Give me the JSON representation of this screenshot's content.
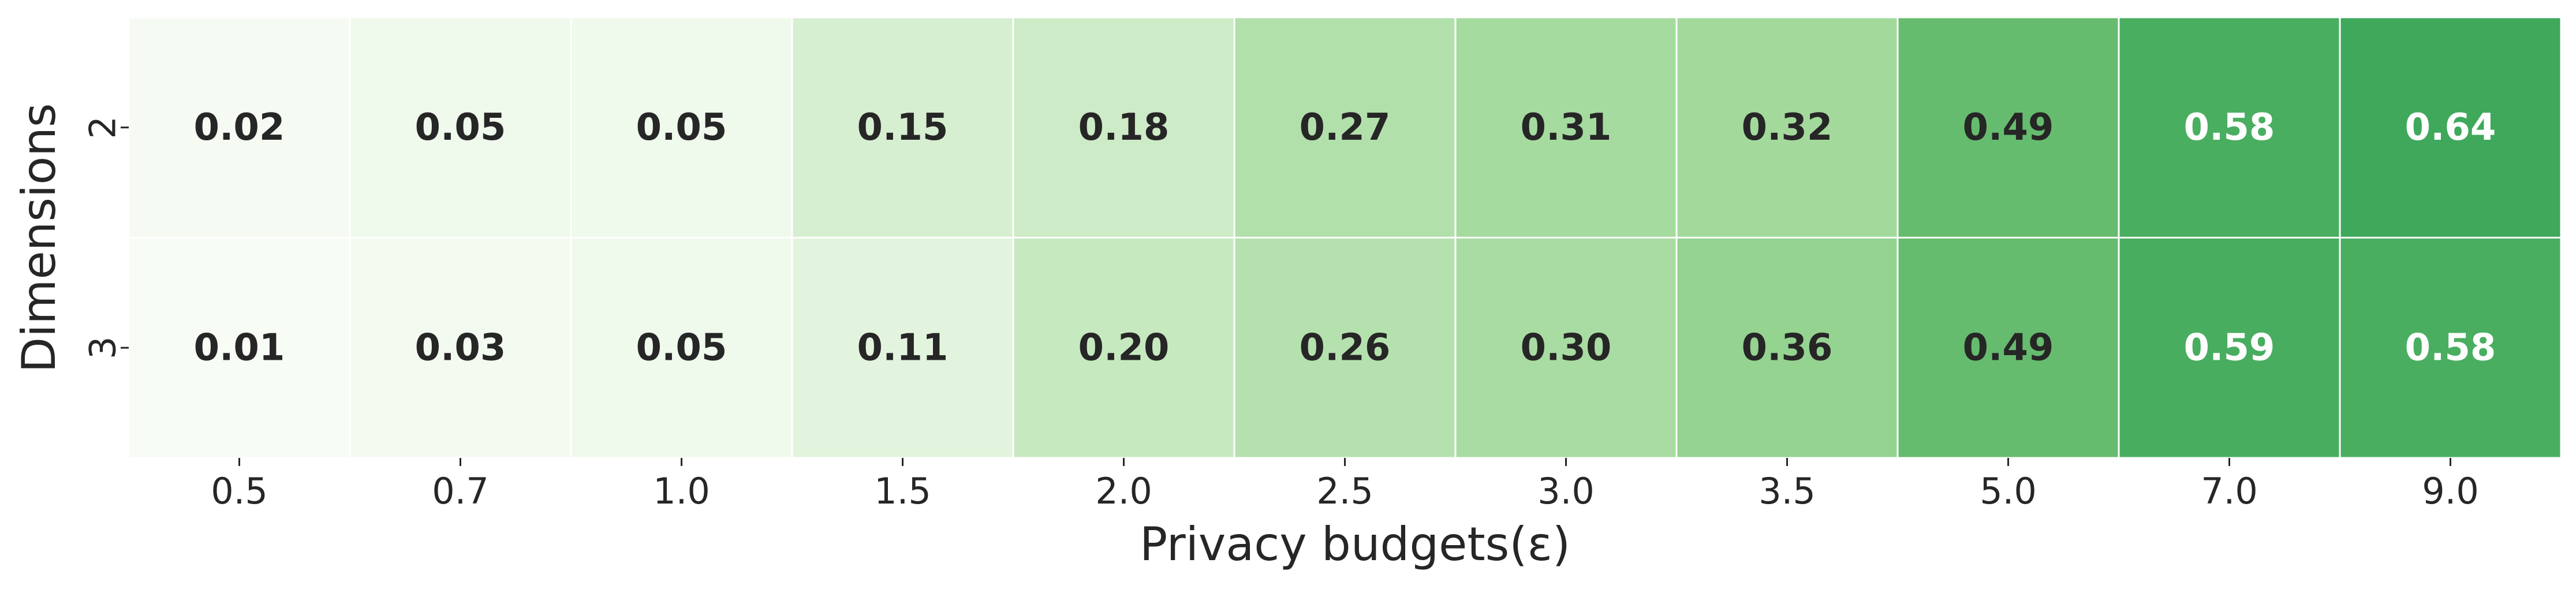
{
  "chart_data": {
    "type": "heatmap",
    "x": [
      "0.5",
      "0.7",
      "1.0",
      "1.5",
      "2.0",
      "2.5",
      "3.0",
      "3.5",
      "5.0",
      "7.0",
      "9.0"
    ],
    "y": [
      "2",
      "3"
    ],
    "values": [
      [
        0.02,
        0.05,
        0.05,
        0.15,
        0.18,
        0.27,
        0.31,
        0.32,
        0.49,
        0.58,
        0.64
      ],
      [
        0.01,
        0.03,
        0.05,
        0.11,
        0.2,
        0.26,
        0.3,
        0.36,
        0.49,
        0.59,
        0.58
      ]
    ],
    "value_labels": [
      [
        "0.02",
        "0.05",
        "0.05",
        "0.15",
        "0.18",
        "0.27",
        "0.31",
        "0.32",
        "0.49",
        "0.58",
        "0.64"
      ],
      [
        "0.01",
        "0.03",
        "0.05",
        "0.11",
        "0.20",
        "0.26",
        "0.30",
        "0.36",
        "0.49",
        "0.59",
        "0.58"
      ]
    ],
    "xlabel": "Privacy budgets(ε)",
    "ylabel": "Dimensions",
    "colormap": "Greens",
    "color_low": "#f7fcf5",
    "color_high": "#3fa85b",
    "text_dark": "#262626",
    "text_light": "#ffffff",
    "grid": false,
    "legend": "none"
  }
}
